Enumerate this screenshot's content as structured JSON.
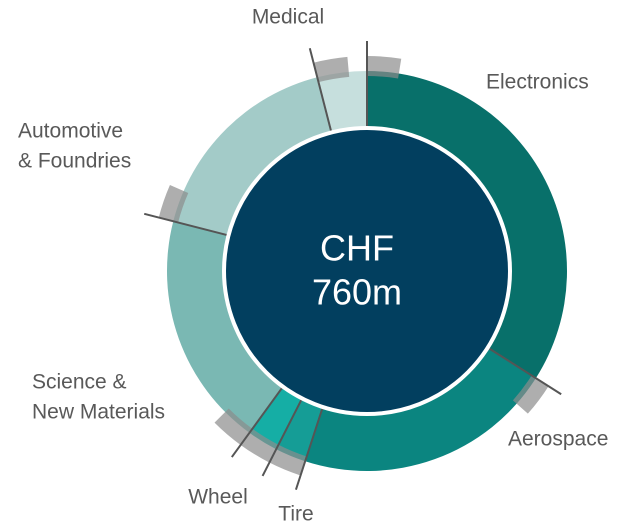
{
  "chart_data": {
    "type": "donut",
    "center_label": [
      "CHF",
      "760m"
    ],
    "categories": [
      [
        "Electronics"
      ],
      [
        "Aerospace"
      ],
      [
        "Tire"
      ],
      [
        "Wheel"
      ],
      [
        "Science &",
        "New Materials"
      ],
      [
        "Automotive",
        "& Foundries"
      ],
      [
        "Medical"
      ]
    ],
    "values": [
      34,
      21,
      2.5,
      2.5,
      19,
      17,
      4
    ],
    "colors": [
      "#08706a",
      "#0b8580",
      "#159d96",
      "#15aea5",
      "#7ab8b3",
      "#a3cbc8",
      "#c6dfdd"
    ],
    "center_color": "#023f5f"
  }
}
